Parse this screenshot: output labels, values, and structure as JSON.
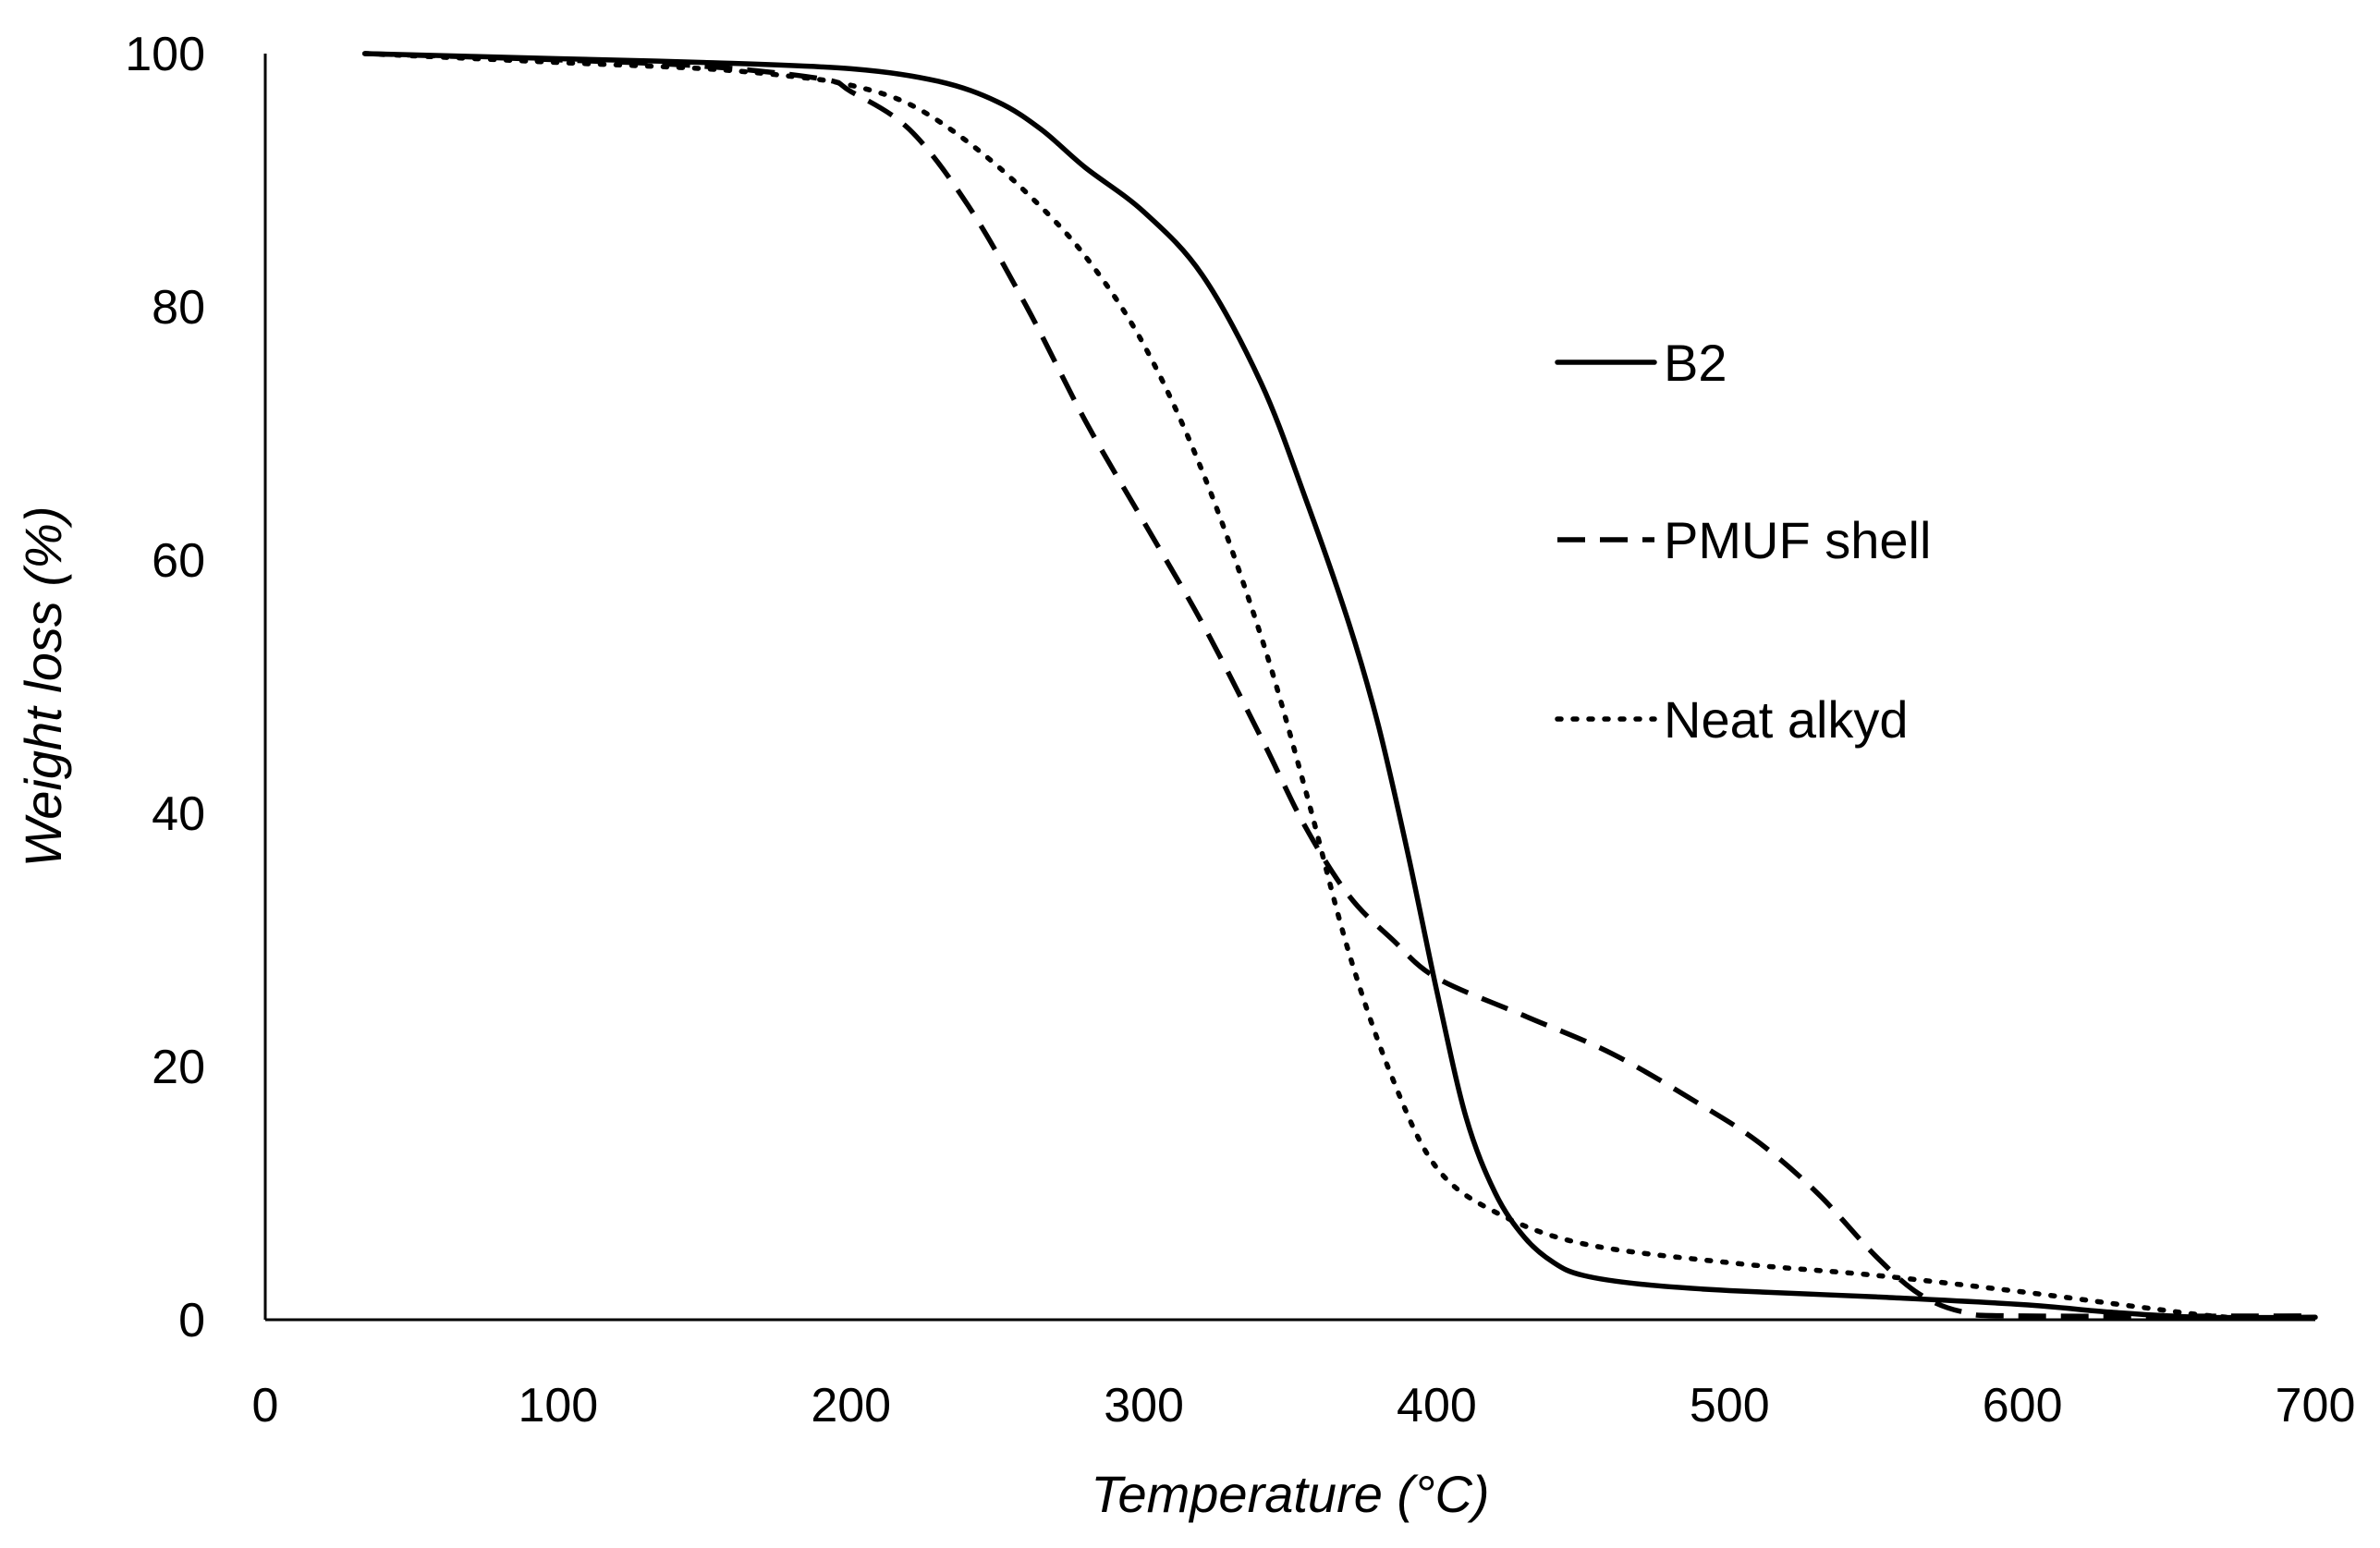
{
  "chart_data": {
    "type": "line",
    "title": "",
    "xlabel": "Temperature (°C)",
    "ylabel": "Weight loss (%)",
    "xlim": [
      0,
      700
    ],
    "ylim": [
      0,
      100
    ],
    "xticks": [
      0,
      100,
      200,
      300,
      400,
      500,
      600,
      700
    ],
    "yticks": [
      0,
      20,
      40,
      60,
      80,
      100
    ],
    "grid": false,
    "legend_position": "right",
    "series": [
      {
        "name": "B2",
        "style": "solid",
        "color": "#000000",
        "x": [
          34,
          100,
          150,
          200,
          230,
          250,
          265,
          280,
          300,
          320,
          340,
          355,
          370,
          380,
          390,
          400,
          410,
          420,
          430,
          440,
          450,
          470,
          500,
          550,
          600,
          630,
          660,
          700
        ],
        "y": [
          100,
          99.6,
          99.3,
          98.8,
          97.8,
          96.2,
          94,
          91,
          87.5,
          82.5,
          74,
          65,
          55,
          47,
          37,
          26,
          16,
          10,
          6.5,
          4.5,
          3.5,
          2.8,
          2.3,
          1.8,
          1.2,
          0.6,
          0.2,
          0.2
        ]
      },
      {
        "name": "PMUF shell",
        "style": "dashed",
        "color": "#000000",
        "x": [
          34,
          100,
          150,
          190,
          200,
          220,
          240,
          260,
          280,
          300,
          320,
          340,
          355,
          370,
          385,
          400,
          430,
          460,
          490,
          510,
          530,
          550,
          565,
          580,
          600,
          700
        ],
        "y": [
          100,
          99.5,
          99,
          98,
          97,
          94,
          88,
          80,
          71,
          63,
          55,
          46,
          39,
          33.5,
          30,
          27,
          24,
          21,
          17,
          14,
          10,
          5,
          2,
          0.6,
          0.3,
          0.3
        ]
      },
      {
        "name": "Neat alkyd",
        "style": "dotted",
        "color": "#000000",
        "x": [
          34,
          100,
          150,
          180,
          200,
          220,
          240,
          260,
          280,
          300,
          320,
          340,
          355,
          370,
          385,
          400,
          420,
          450,
          500,
          550,
          600,
          640,
          670,
          700
        ],
        "y": [
          100,
          99.3,
          98.8,
          98.2,
          97.5,
          96,
          93,
          89,
          84,
          77,
          67,
          54,
          42,
          29,
          19,
          12,
          8.5,
          6,
          4.5,
          3.5,
          2.2,
          1,
          0.2,
          0.1
        ]
      }
    ]
  }
}
